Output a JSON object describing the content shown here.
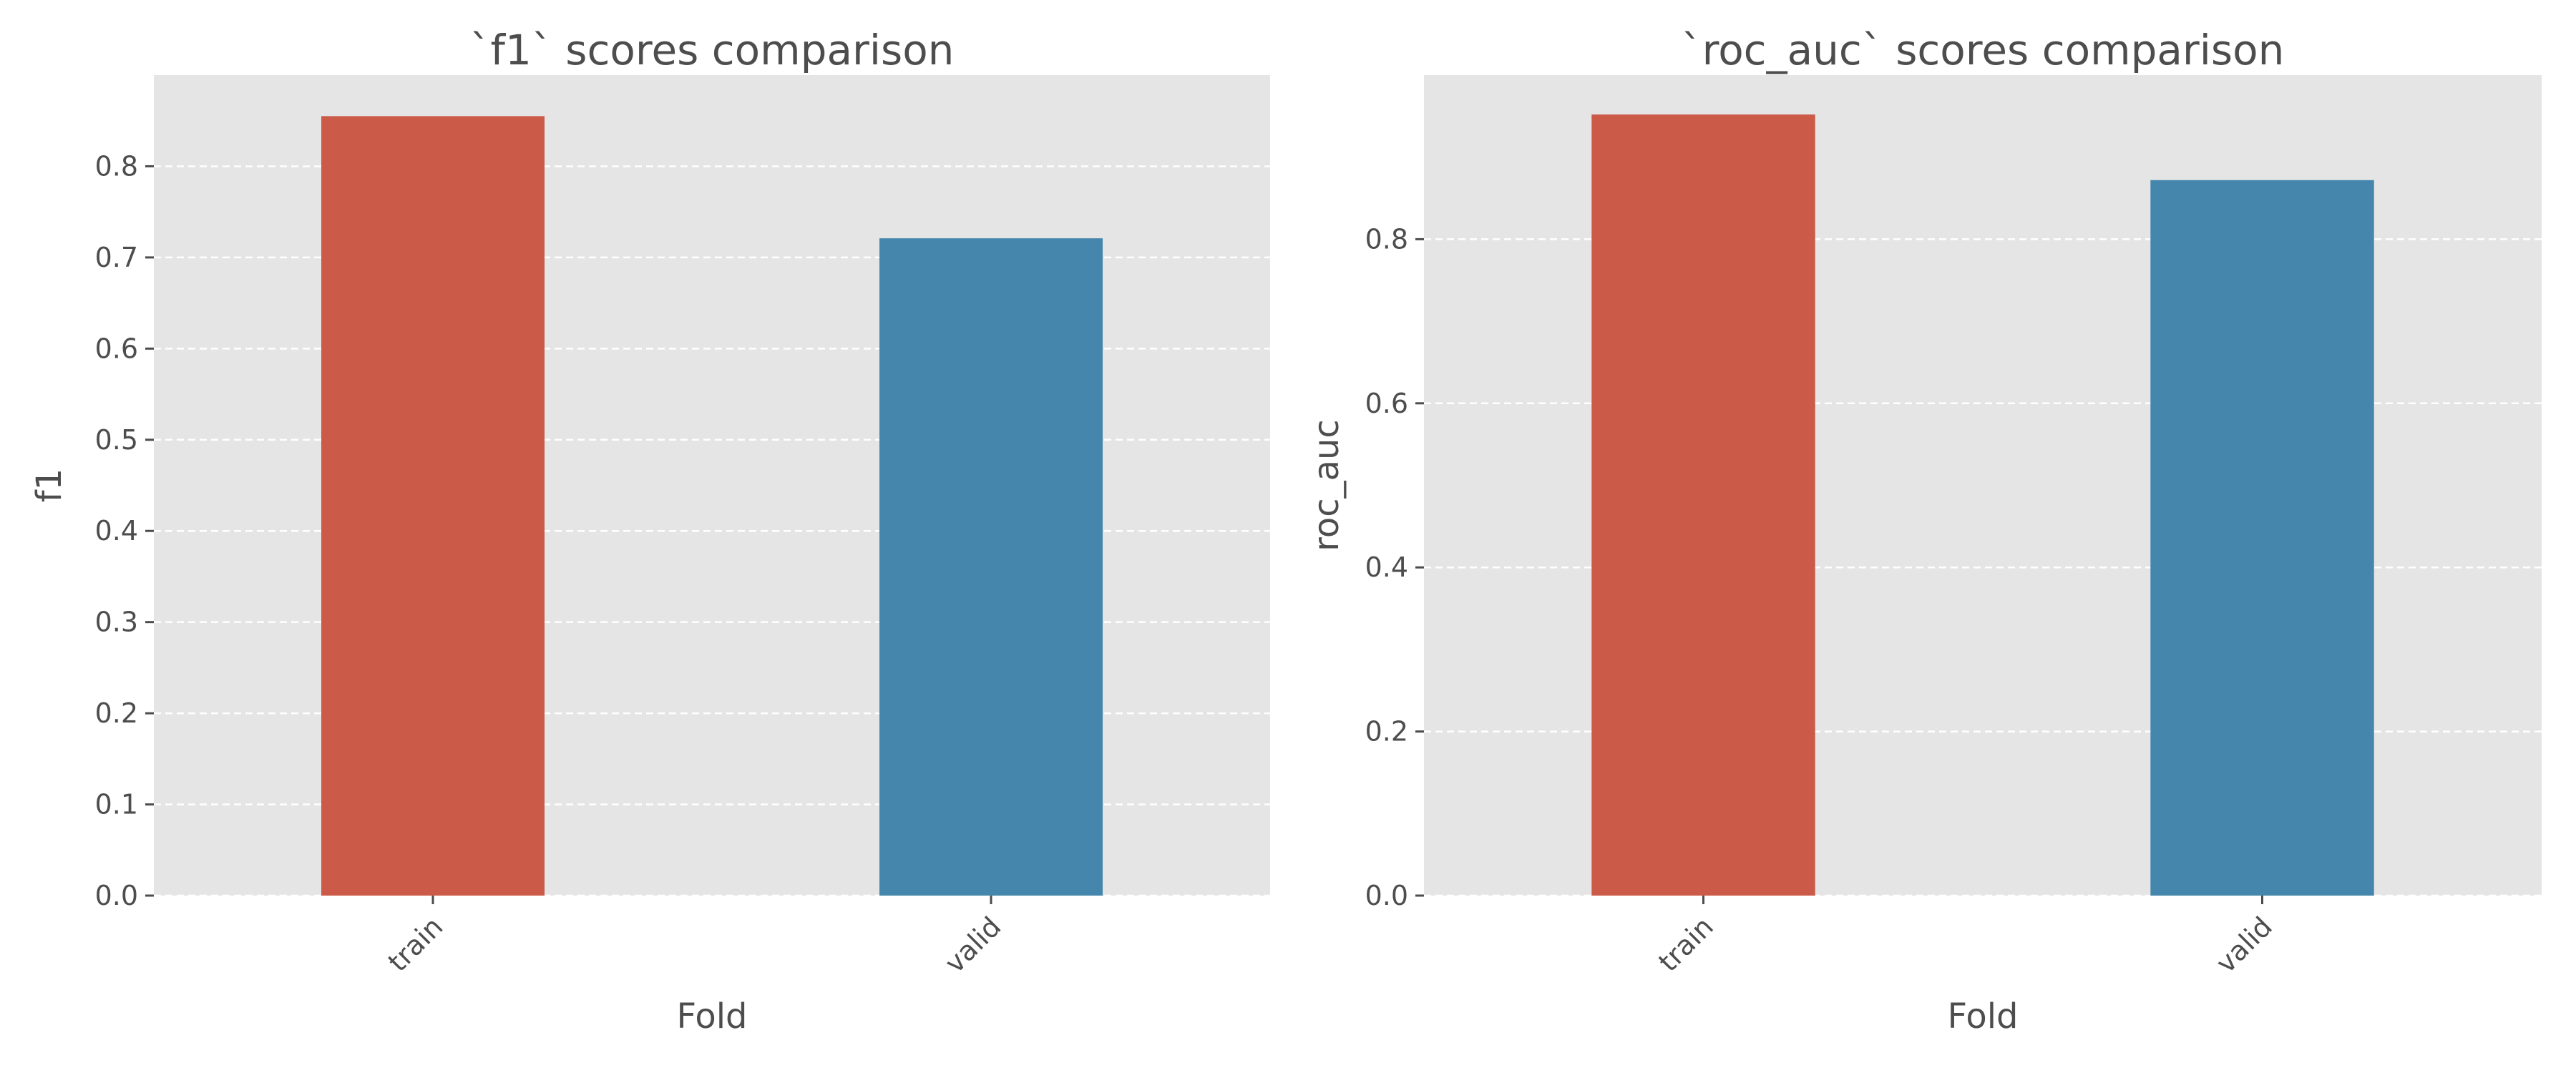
{
  "chart_data": [
    {
      "type": "bar",
      "title": "`f1` scores comparison",
      "xlabel": "Fold",
      "ylabel": "f1",
      "categories": [
        "train",
        "valid"
      ],
      "values": [
        0.855,
        0.721
      ],
      "bar_colors": [
        "#cc5a49",
        "#4586ac"
      ],
      "ylim": [
        0,
        0.9
      ],
      "yticks": [
        0.0,
        0.1,
        0.2,
        0.3,
        0.4,
        0.5,
        0.6,
        0.7,
        0.8
      ],
      "ytick_labels": [
        "0.0",
        "0.1",
        "0.2",
        "0.3",
        "0.4",
        "0.5",
        "0.6",
        "0.7",
        "0.8"
      ],
      "grid": true,
      "background": "#e5e5e5"
    },
    {
      "type": "bar",
      "title": "`roc_auc` scores comparison",
      "xlabel": "Fold",
      "ylabel": "roc_auc",
      "categories": [
        "train",
        "valid"
      ],
      "values": [
        0.952,
        0.872
      ],
      "bar_colors": [
        "#cc5a49",
        "#4586ac"
      ],
      "ylim": [
        0,
        1.0
      ],
      "yticks": [
        0.0,
        0.2,
        0.4,
        0.6,
        0.8
      ],
      "ytick_labels": [
        "0.0",
        "0.2",
        "0.4",
        "0.6",
        "0.8"
      ],
      "grid": true,
      "background": "#e5e5e5"
    }
  ]
}
